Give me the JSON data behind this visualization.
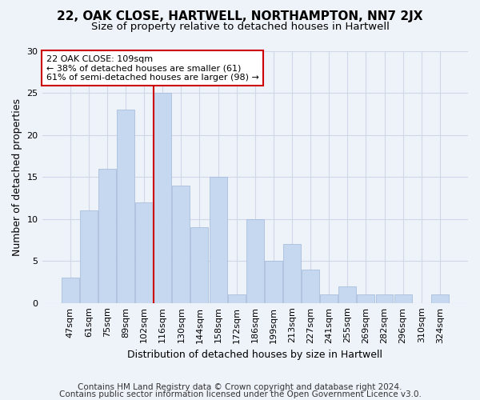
{
  "title1": "22, OAK CLOSE, HARTWELL, NORTHAMPTON, NN7 2JX",
  "title2": "Size of property relative to detached houses in Hartwell",
  "xlabel": "Distribution of detached houses by size in Hartwell",
  "ylabel": "Number of detached properties",
  "categories": [
    "47sqm",
    "61sqm",
    "75sqm",
    "89sqm",
    "102sqm",
    "116sqm",
    "130sqm",
    "144sqm",
    "158sqm",
    "172sqm",
    "186sqm",
    "199sqm",
    "213sqm",
    "227sqm",
    "241sqm",
    "255sqm",
    "269sqm",
    "282sqm",
    "296sqm",
    "310sqm",
    "324sqm"
  ],
  "values": [
    3,
    11,
    16,
    23,
    12,
    25,
    14,
    9,
    15,
    1,
    10,
    5,
    7,
    4,
    1,
    2,
    1,
    1,
    1,
    0,
    1
  ],
  "bar_color": "#c5d8f0",
  "bar_edge_color": "#a0b8d8",
  "vline_x": 4.5,
  "vline_color": "#cc0000",
  "annotation_text": "22 OAK CLOSE: 109sqm\n← 38% of detached houses are smaller (61)\n61% of semi-detached houses are larger (98) →",
  "annotation_box_color": "#ffffff",
  "annotation_box_edge": "#cc0000",
  "grid_color": "#d0d8e8",
  "background_color": "#eef2f9",
  "footer1": "Contains HM Land Registry data © Crown copyright and database right 2024.",
  "footer2": "Contains public sector information licensed under the Open Government Licence v3.0.",
  "ylim": [
    0,
    30
  ],
  "title1_fontsize": 11,
  "title2_fontsize": 9.5,
  "xlabel_fontsize": 9,
  "ylabel_fontsize": 9,
  "tick_fontsize": 8,
  "footer_fontsize": 7.5
}
